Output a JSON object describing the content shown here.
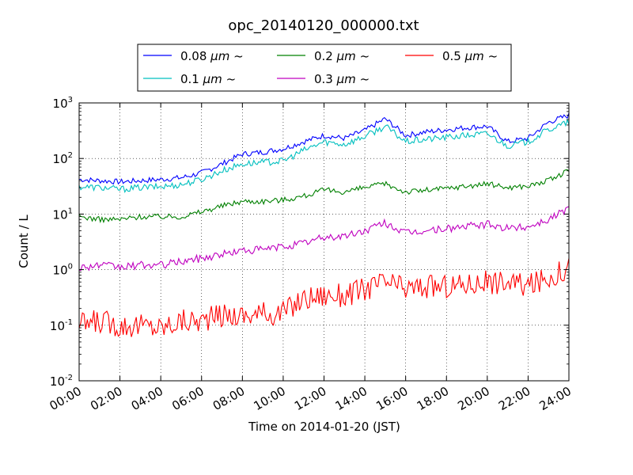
{
  "chart_data": {
    "type": "line",
    "title": "opc_20140120_000000.txt",
    "xlabel": "Time on 2014-01-20 (JST)",
    "ylabel": "Count / L",
    "yscale": "log",
    "ylim": [
      0.01,
      1000
    ],
    "xlim": [
      0,
      24
    ],
    "grid": true,
    "legend_position": "top-center",
    "x_tick_labels": [
      "00:00",
      "02:00",
      "04:00",
      "06:00",
      "08:00",
      "10:00",
      "12:00",
      "14:00",
      "16:00",
      "18:00",
      "20:00",
      "22:00",
      "24:00"
    ],
    "y_tick_labels": [
      {
        "base": "10",
        "exp": "-2"
      },
      {
        "base": "10",
        "exp": "-1"
      },
      {
        "base": "10",
        "exp": "0"
      },
      {
        "base": "10",
        "exp": "1"
      },
      {
        "base": "10",
        "exp": "2"
      },
      {
        "base": "10",
        "exp": "3"
      }
    ],
    "x": [
      0,
      1,
      2,
      3,
      4,
      5,
      6,
      7,
      8,
      9,
      10,
      11,
      12,
      13,
      14,
      15,
      16,
      17,
      18,
      19,
      20,
      21,
      22,
      23,
      24
    ],
    "series": [
      {
        "name": "0.08",
        "unit": "μm",
        "suffix": "~",
        "color": "#0000ff",
        "values": [
          42,
          40,
          38,
          40,
          42,
          45,
          55,
          80,
          120,
          130,
          150,
          200,
          260,
          230,
          320,
          520,
          260,
          300,
          330,
          360,
          380,
          200,
          230,
          450,
          600
        ]
      },
      {
        "name": "0.1",
        "unit": "μm",
        "suffix": "~",
        "color": "#00bfbf",
        "values": [
          31,
          30,
          28,
          30,
          31,
          34,
          42,
          60,
          80,
          85,
          90,
          140,
          200,
          180,
          250,
          380,
          200,
          220,
          240,
          260,
          280,
          170,
          200,
          330,
          450
        ]
      },
      {
        "name": "0.2",
        "unit": "μm",
        "suffix": "~",
        "color": "#008000",
        "values": [
          9,
          8,
          8,
          9,
          9,
          9,
          11,
          14,
          17,
          17,
          18,
          21,
          27,
          25,
          30,
          35,
          25,
          27,
          29,
          32,
          35,
          30,
          32,
          40,
          60
        ]
      },
      {
        "name": "0.3",
        "unit": "μm",
        "suffix": "~",
        "color": "#bf00bf",
        "values": [
          1.1,
          1.2,
          1.1,
          1.2,
          1.2,
          1.4,
          1.6,
          1.9,
          2.2,
          2.3,
          2.6,
          3.0,
          3.8,
          4.0,
          5.0,
          7.0,
          4.5,
          5.0,
          5.5,
          6.0,
          6.5,
          5.5,
          6.0,
          8.0,
          13
        ]
      },
      {
        "name": "0.5",
        "unit": "μm",
        "suffix": "~",
        "color": "#ff0000",
        "values": [
          0.1,
          0.12,
          0.1,
          0.1,
          0.09,
          0.12,
          0.12,
          0.15,
          0.15,
          0.16,
          0.17,
          0.3,
          0.35,
          0.35,
          0.45,
          0.6,
          0.45,
          0.5,
          0.5,
          0.55,
          0.6,
          0.6,
          0.5,
          0.7,
          1.1
        ]
      }
    ]
  }
}
